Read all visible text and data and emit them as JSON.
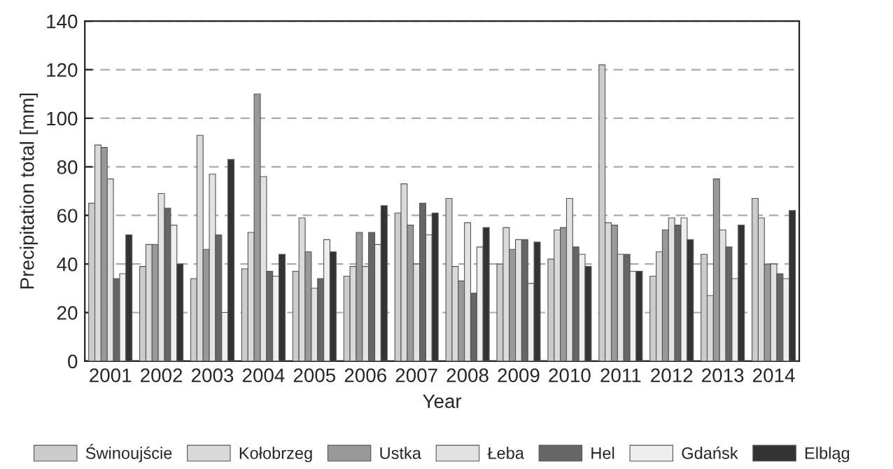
{
  "chart_data": {
    "type": "bar",
    "xlabel": "Year",
    "ylabel": "Precipitation total [mm]",
    "categories": [
      "2001",
      "2002",
      "2003",
      "2004",
      "2005",
      "2006",
      "2007",
      "2008",
      "2009",
      "2010",
      "2011",
      "2012",
      "2013",
      "2014"
    ],
    "series": [
      {
        "name": "Świnoujście",
        "color": "#cccccc",
        "values": [
          65,
          39,
          34,
          38,
          37,
          35,
          61,
          67,
          40,
          42,
          122,
          35,
          44,
          67
        ]
      },
      {
        "name": "Kołobrzeg",
        "color": "#dadada",
        "values": [
          89,
          48,
          93,
          53,
          59,
          39,
          73,
          39,
          55,
          54,
          57,
          45,
          27,
          59
        ]
      },
      {
        "name": "Ustka",
        "color": "#999999",
        "values": [
          88,
          48,
          46,
          110,
          45,
          53,
          56,
          33,
          46,
          55,
          56,
          54,
          75,
          40
        ]
      },
      {
        "name": "Łeba",
        "color": "#e2e2e2",
        "values": [
          75,
          69,
          77,
          76,
          30,
          39,
          40,
          57,
          50,
          67,
          44,
          59,
          54,
          40
        ]
      },
      {
        "name": "Hel",
        "color": "#666666",
        "values": [
          34,
          63,
          52,
          37,
          34,
          53,
          65,
          28,
          50,
          47,
          44,
          56,
          47,
          36
        ]
      },
      {
        "name": "Gdańsk",
        "color": "#eeeeee",
        "values": [
          36,
          56,
          20,
          35,
          50,
          48,
          52,
          47,
          32,
          44,
          37,
          59,
          34,
          34
        ]
      },
      {
        "name": "Elbląg",
        "color": "#333333",
        "values": [
          52,
          40,
          83,
          44,
          45,
          64,
          61,
          55,
          49,
          39,
          37,
          50,
          56,
          62
        ]
      }
    ],
    "ylim": [
      0,
      140
    ],
    "yticks": [
      0,
      20,
      40,
      60,
      80,
      100,
      120,
      140
    ],
    "grid": "y",
    "legend": "bottom"
  }
}
